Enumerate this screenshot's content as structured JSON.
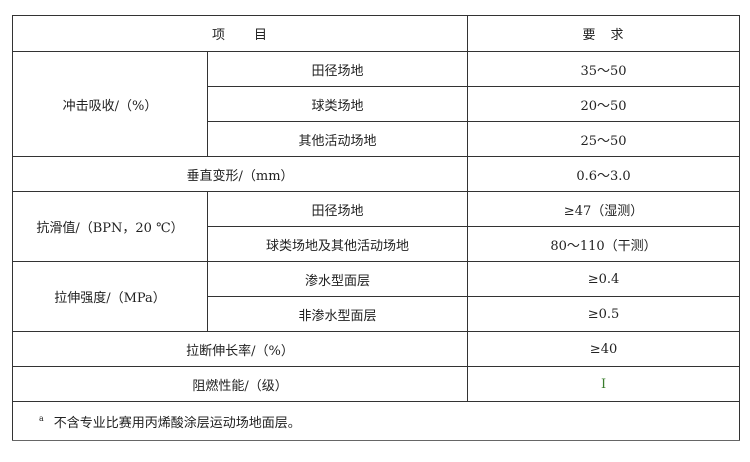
{
  "header": {
    "item": "项　　目",
    "requirement": "要　求"
  },
  "rows": {
    "impact": {
      "label": "冲击吸收/（%）",
      "sub": [
        {
          "name": "田径场地",
          "value": "35～50"
        },
        {
          "name": "球类场地",
          "value": "20～50"
        },
        {
          "name": "其他活动场地",
          "value": "25～50"
        }
      ]
    },
    "vertical": {
      "label": "垂直变形/（mm）",
      "value": "0.6～3.0"
    },
    "slip": {
      "label": "抗滑值/（BPN，20 ℃）",
      "sub": [
        {
          "name": "田径场地",
          "value": "≥47（湿测）"
        },
        {
          "name": "球类场地及其他活动场地",
          "value": "80～110（干测）"
        }
      ]
    },
    "tensile": {
      "label": "拉伸强度/（MPa）",
      "sub": [
        {
          "name": "渗水型面层",
          "value": "≥0.4"
        },
        {
          "name": "非渗水型面层",
          "value": "≥0.5"
        }
      ]
    },
    "elongation": {
      "label": "拉断伸长率/（%）",
      "value": "≥40"
    },
    "flame": {
      "label": "阻燃性能/（级）",
      "value": "I"
    }
  },
  "footnote": {
    "mark": "a",
    "text": "不含专业比赛用丙烯酸涂层运动场地面层。"
  }
}
